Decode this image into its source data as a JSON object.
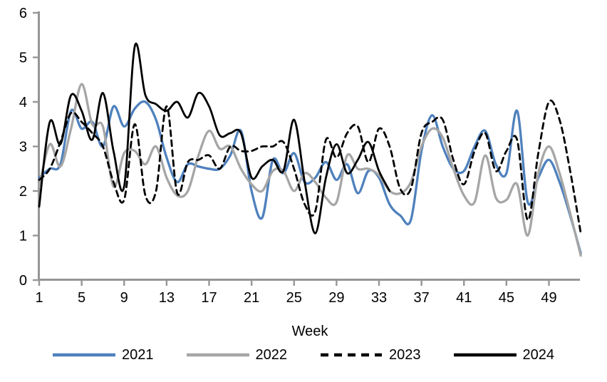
{
  "chart_data": {
    "type": "line",
    "title": "",
    "xlabel": "Week",
    "ylabel": "",
    "xlim": [
      1,
      52
    ],
    "ylim": [
      0,
      6
    ],
    "x_ticks": [
      1,
      5,
      9,
      13,
      17,
      21,
      25,
      29,
      33,
      37,
      41,
      45,
      49
    ],
    "y_ticks": [
      0,
      1,
      2,
      3,
      4,
      5,
      6
    ],
    "grid": false,
    "legend_position": "bottom",
    "axis_color": "#969696",
    "x_unit": "week number, first point = week 1",
    "series": [
      {
        "name": "2021",
        "color": "#4f81bd",
        "style": "solid",
        "values": [
          2.3,
          2.5,
          2.6,
          3.8,
          3.4,
          3.55,
          3.0,
          3.9,
          3.45,
          3.85,
          4.0,
          3.6,
          2.75,
          2.2,
          2.6,
          2.55,
          2.5,
          2.5,
          2.8,
          3.35,
          2.0,
          1.4,
          2.7,
          2.4,
          2.85,
          2.2,
          2.3,
          2.65,
          2.25,
          2.6,
          1.95,
          2.45,
          2.3,
          1.7,
          1.45,
          1.35,
          2.9,
          3.7,
          3.0,
          2.5,
          2.45,
          3.0,
          3.35,
          2.6,
          2.4,
          3.8,
          1.75,
          2.3,
          2.7,
          2.2,
          1.45,
          0.6
        ]
      },
      {
        "name": "2022",
        "color": "#a6a6a6",
        "style": "solid",
        "values": [
          2.1,
          3.05,
          2.55,
          3.4,
          4.4,
          3.5,
          3.45,
          2.1,
          2.85,
          2.9,
          2.6,
          3.0,
          2.3,
          1.9,
          2.0,
          2.8,
          3.35,
          2.95,
          3.0,
          2.5,
          2.15,
          2.0,
          2.45,
          2.45,
          2.0,
          2.4,
          2.2,
          1.85,
          1.75,
          2.8,
          2.5,
          2.5,
          2.35,
          2.0,
          1.95,
          2.2,
          3.0,
          3.4,
          3.2,
          2.5,
          1.9,
          1.75,
          2.8,
          1.85,
          1.8,
          2.15,
          1.0,
          2.4,
          3.0,
          2.4,
          1.5,
          0.55
        ]
      },
      {
        "name": "2023",
        "color": "#000000",
        "style": "dashed",
        "values": [
          2.25,
          2.5,
          3.1,
          3.75,
          3.55,
          3.3,
          3.0,
          2.2,
          1.8,
          3.5,
          1.9,
          2.0,
          3.9,
          1.95,
          2.65,
          2.7,
          2.8,
          2.5,
          3.0,
          2.9,
          2.9,
          3.0,
          3.0,
          3.1,
          2.5,
          1.7,
          1.55,
          3.15,
          2.75,
          3.3,
          3.45,
          2.65,
          3.4,
          3.0,
          2.05,
          2.05,
          3.3,
          3.55,
          3.6,
          2.7,
          2.15,
          2.9,
          3.3,
          2.45,
          2.9,
          3.15,
          1.35,
          2.85,
          4.0,
          3.6,
          2.45,
          1.05
        ]
      },
      {
        "name": "2024",
        "color": "#000000",
        "style": "solid",
        "values": [
          1.65,
          3.55,
          3.05,
          4.15,
          3.8,
          3.15,
          4.2,
          2.9,
          2.1,
          5.25,
          4.15,
          3.95,
          3.8,
          4.0,
          3.65,
          4.2,
          3.9,
          3.25,
          3.3,
          3.3,
          2.3,
          2.55,
          2.7,
          2.45,
          3.6,
          2.2,
          1.05,
          2.3,
          3.05,
          2.4,
          2.7,
          3.1,
          2.45,
          2.0
        ]
      }
    ]
  }
}
